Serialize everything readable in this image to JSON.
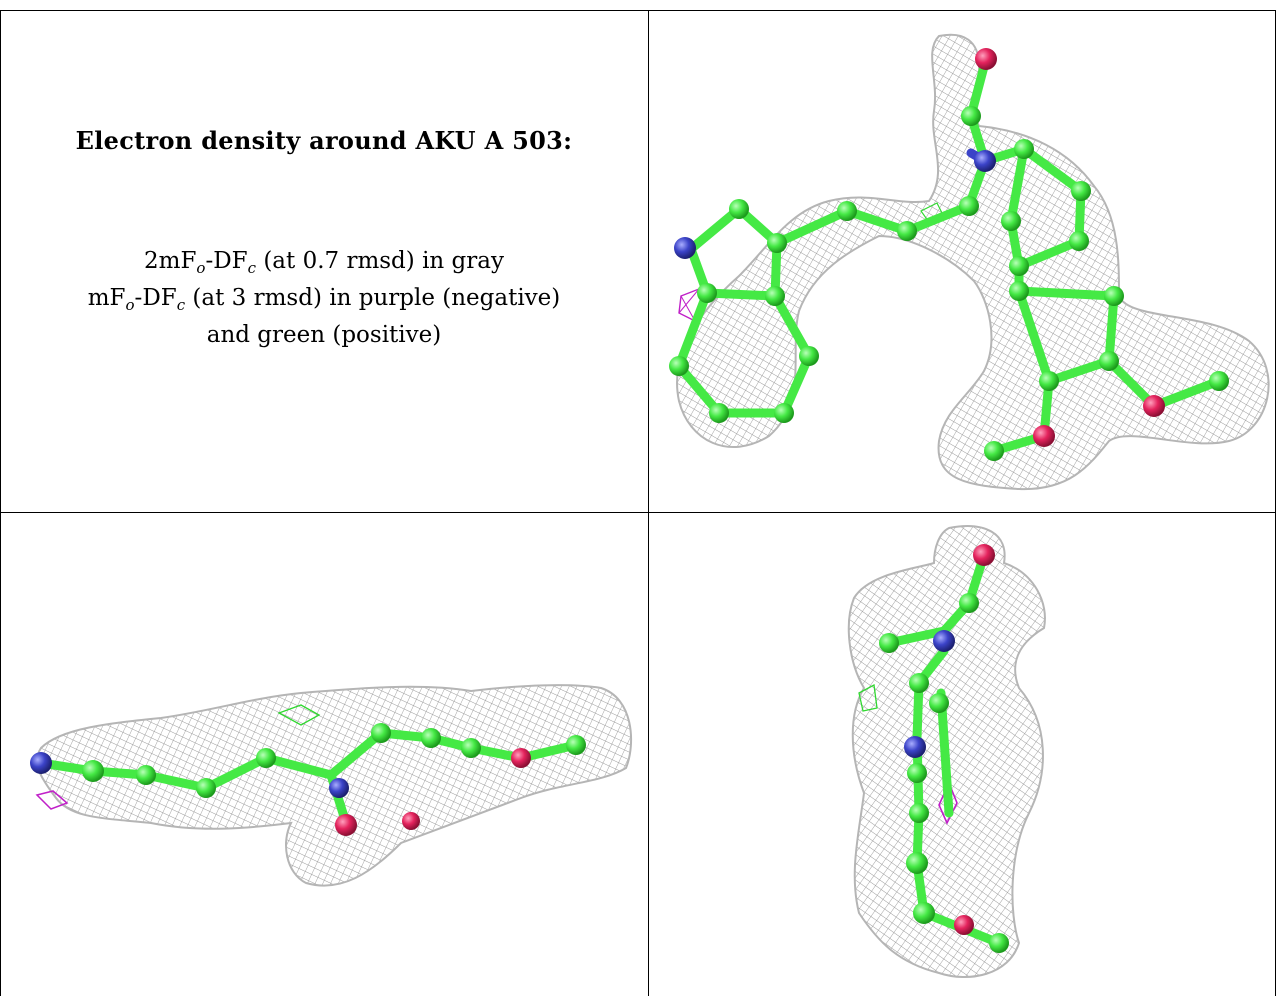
{
  "legend": {
    "title": "Electron density around AKU A 503:",
    "line1": {
      "pre": "2mF",
      "sub1": "o",
      "mid": "-DF",
      "sub2": "c",
      "post": " (at 0.7 rmsd) in gray"
    },
    "line2": {
      "pre": "mF",
      "sub1": "o",
      "mid": "-DF",
      "sub2": "c",
      "post": " (at 3 rmsd) in purple (negative)"
    },
    "line3": "and green (positive)"
  },
  "colors": {
    "carbon": "#45e945",
    "nitrogen": "#3b43c8",
    "oxygen": "#e4235d",
    "mesh_gray": "#9a9a9a",
    "negative_density": "#c020c8",
    "positive_density": "#30d830"
  },
  "panels": [
    {
      "name": "top-right",
      "view": "face-on",
      "atom_colors": [
        "carbon",
        "nitrogen",
        "oxygen"
      ]
    },
    {
      "name": "bottom-left",
      "view": "side-on",
      "atom_colors": [
        "carbon",
        "nitrogen",
        "oxygen"
      ]
    },
    {
      "name": "bottom-right",
      "view": "end-on",
      "atom_colors": [
        "carbon",
        "nitrogen",
        "oxygen"
      ]
    }
  ]
}
